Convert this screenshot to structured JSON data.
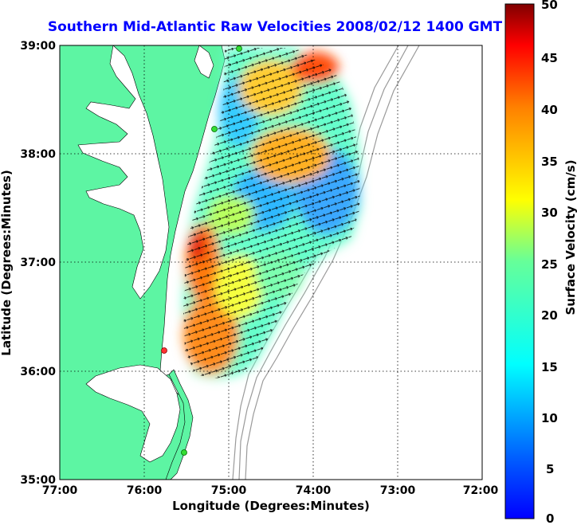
{
  "title": "Southern Mid-Atlantic Raw Velocities 2008/02/12 1400 GMT",
  "x_axis": {
    "label": "Longitude (Degrees:Minutes)",
    "ticks": [
      "77:00",
      "76:00",
      "75:00",
      "74:00",
      "73:00",
      "72:00"
    ]
  },
  "y_axis": {
    "label": "Latitude (Degrees:Minutes)",
    "ticks": [
      "39:00",
      "38:00",
      "37:00",
      "36:00",
      "35:00"
    ]
  },
  "colorbar": {
    "label": "Surface Velocity (cm/s)",
    "ticks": [
      "50",
      "45",
      "40",
      "35",
      "30",
      "25",
      "20",
      "15",
      "10",
      "5",
      "0"
    ],
    "min": 0,
    "max": 50
  },
  "map": {
    "lon_range": [
      -77,
      -72
    ],
    "lat_range": [
      35,
      39
    ],
    "land_color": "#5df5a3",
    "bathymetry_color": "#999999",
    "grid": "dotted",
    "stations": [
      {
        "name": "station-north",
        "color": "#33dd33"
      },
      {
        "name": "station-delmarva",
        "color": "#33dd33"
      },
      {
        "name": "station-capehatteras-north",
        "color": "#ff3333"
      },
      {
        "name": "station-south",
        "color": "#33dd33"
      }
    ]
  }
}
